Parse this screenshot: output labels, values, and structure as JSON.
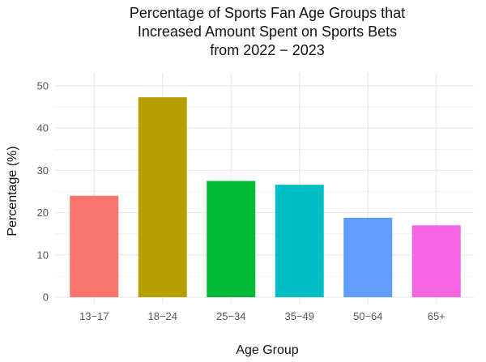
{
  "chart_data": {
    "type": "bar",
    "title_lines": [
      "Percentage of Sports Fan Age Groups that",
      "Increased Amount Spent on Sports Bets",
      "from 2022 − 2023"
    ],
    "xlabel": "Age Group",
    "ylabel": "Percentage (%)",
    "categories": [
      "13−17",
      "18−24",
      "25−34",
      "35−49",
      "50−64",
      "65+"
    ],
    "values": [
      24,
      47.3,
      27.5,
      26.6,
      18.8,
      17.0
    ],
    "colors": [
      "#F8766D",
      "#B79F00",
      "#00BA38",
      "#00BFC4",
      "#619CFF",
      "#F564E3"
    ],
    "ylim": [
      0,
      50
    ],
    "yticks": [
      0,
      10,
      20,
      30,
      40,
      50
    ],
    "grid": true,
    "legend": "none"
  }
}
